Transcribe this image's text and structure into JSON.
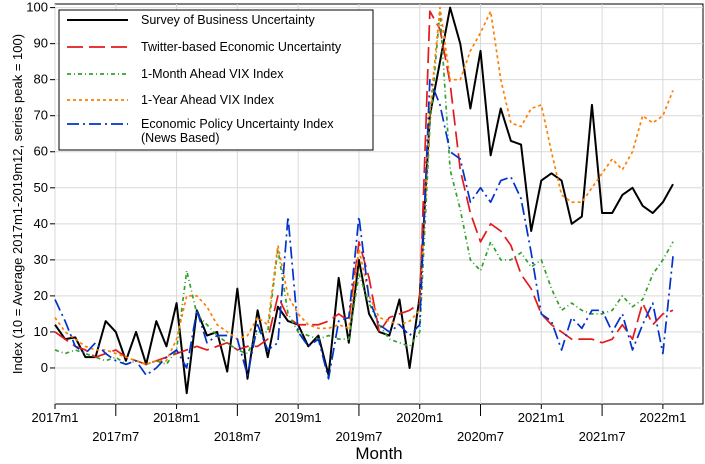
{
  "chart_data": {
    "type": "line",
    "xlabel": "Month",
    "ylabel": "Index (10 = Average 2017m1-2019m12, series peak = 100)",
    "ylim": [
      -10,
      101
    ],
    "yticks": [
      0,
      10,
      20,
      30,
      40,
      50,
      60,
      70,
      80,
      90,
      100
    ],
    "xlim": [
      2017.0,
      2022.33
    ],
    "xticks": [
      {
        "value": 2017.0,
        "label": "2017m1",
        "row": 1
      },
      {
        "value": 2017.5,
        "label": "2017m7",
        "row": 2
      },
      {
        "value": 2018.0,
        "label": "2018m1",
        "row": 1
      },
      {
        "value": 2018.5,
        "label": "2018m7",
        "row": 2
      },
      {
        "value": 2019.0,
        "label": "2019m1",
        "row": 1
      },
      {
        "value": 2019.5,
        "label": "2019m7",
        "row": 2
      },
      {
        "value": 2020.0,
        "label": "2020m1",
        "row": 1
      },
      {
        "value": 2020.5,
        "label": "2020m7",
        "row": 2
      },
      {
        "value": 2021.0,
        "label": "2021m1",
        "row": 1
      },
      {
        "value": 2021.5,
        "label": "2021m7",
        "row": 2
      },
      {
        "value": 2022.0,
        "label": "2022m1",
        "row": 1
      }
    ],
    "grid": true,
    "legend_position": "top-left",
    "x_start": "2017m1",
    "series": [
      {
        "name": "Survey of Business Uncertainty",
        "color": "#000000",
        "dash": "solid",
        "values": [
          12,
          8,
          8.5,
          3,
          3,
          13,
          10,
          2,
          10,
          1,
          13,
          6,
          18,
          -7,
          16,
          9,
          10,
          -1,
          22,
          -3,
          16,
          3,
          17,
          13,
          12,
          6,
          9,
          -2,
          25,
          7,
          30,
          15,
          10,
          9,
          19,
          0,
          20,
          70,
          85,
          100,
          90,
          72,
          88,
          59,
          72,
          63,
          62,
          38,
          52,
          54,
          52,
          40,
          42,
          73,
          43,
          43,
          48,
          50,
          45,
          43,
          46,
          51
        ]
      },
      {
        "name": "Twitter-based Economic Uncertainty",
        "color": "#e41a1c",
        "dash": "long",
        "values": [
          10,
          8,
          6,
          5,
          3,
          4,
          5,
          3,
          2,
          1,
          2,
          3,
          4,
          5,
          6,
          5,
          6,
          7,
          5,
          6,
          6,
          8,
          20,
          14,
          12,
          12,
          12,
          13,
          15,
          13,
          35,
          25,
          10,
          14,
          15,
          16,
          18,
          99,
          94,
          79,
          55,
          43,
          35,
          40,
          38,
          34,
          26,
          22,
          15,
          12,
          10,
          8,
          8,
          8,
          7,
          8,
          12,
          8,
          18,
          12,
          15,
          16
        ]
      },
      {
        "name": "1-Month Ahead VIX Index",
        "color": "#33a02c",
        "dash": "dashdot",
        "values": [
          5,
          4,
          5,
          4,
          3,
          2,
          3,
          1,
          2,
          1,
          2,
          1,
          5,
          27,
          15,
          12,
          9,
          7,
          5,
          4,
          10,
          10,
          33,
          15,
          10,
          9,
          8,
          9,
          8,
          8,
          26,
          18,
          12,
          8,
          7,
          6,
          10,
          67,
          99,
          55,
          44,
          30,
          27,
          35,
          30,
          30,
          32,
          28,
          30,
          22,
          16,
          18,
          16,
          15,
          15,
          16,
          20,
          17,
          19,
          26,
          30,
          35
        ]
      },
      {
        "name": "1-Year Ahead VIX Index",
        "color": "#ff7f00",
        "dash": "dot",
        "values": [
          14,
          10,
          8,
          6,
          5,
          5,
          4,
          3,
          2,
          1,
          2,
          2,
          8,
          20,
          20,
          17,
          12,
          10,
          8,
          9,
          14,
          12,
          34,
          20,
          15,
          12,
          11,
          11,
          12,
          11,
          33,
          20,
          14,
          13,
          12,
          13,
          16,
          71,
          100,
          80,
          80,
          88,
          93,
          99,
          80,
          68,
          67,
          72,
          73,
          60,
          48,
          46,
          46,
          50,
          54,
          58,
          55,
          60,
          70,
          68,
          70,
          77
        ]
      },
      {
        "name": "Economic Policy Uncertainty Index\n(News Based)",
        "color": "#0033cc",
        "dash": "dashdotlong",
        "values": [
          19,
          13,
          6,
          4,
          7,
          4,
          2,
          1,
          2,
          -2,
          0,
          3,
          5,
          0,
          16,
          7,
          9,
          9,
          8,
          -2,
          12,
          5,
          7,
          42,
          10,
          6,
          8,
          -3,
          13,
          14,
          42,
          19,
          12,
          10,
          12,
          9,
          12,
          80,
          73,
          60,
          58,
          46,
          50,
          46,
          52,
          53,
          47,
          32,
          15,
          13,
          5,
          14,
          11,
          16,
          16,
          10,
          15,
          5,
          12,
          18,
          4,
          31
        ]
      }
    ]
  }
}
